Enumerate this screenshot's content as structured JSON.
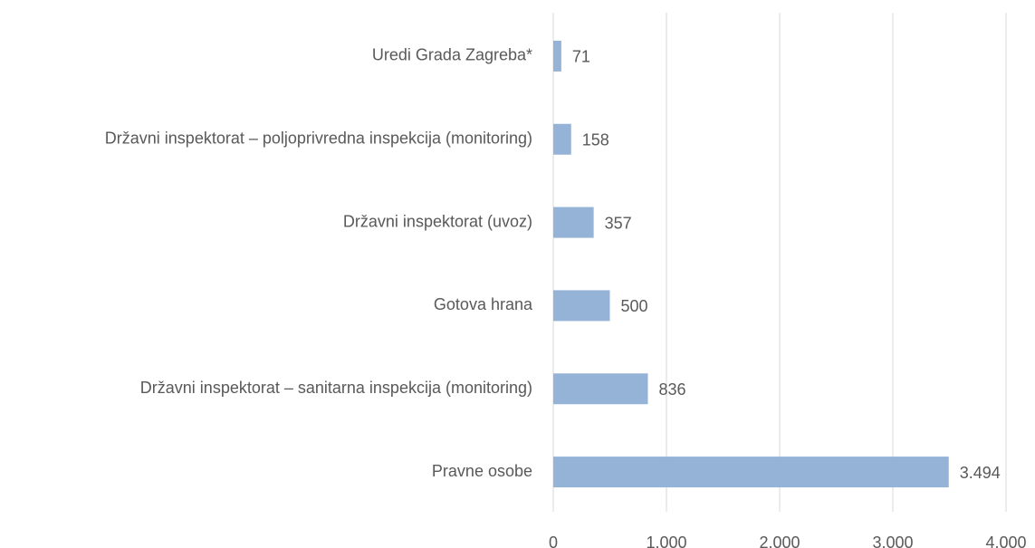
{
  "chart_data": {
    "type": "hbar",
    "categories": [
      "Uredi Grada Zagreba*",
      "Državni inspektorat – poljoprivredna inspekcija (monitoring)",
      "Državni inspektorat (uvoz)",
      "Gotova hrana",
      "Državni inspektorat – sanitarna inspekcija (monitoring)",
      "Pravne osobe"
    ],
    "values": [
      71,
      158,
      357,
      500,
      836,
      3494
    ],
    "value_labels": [
      "71",
      "158",
      "357",
      "500",
      "836",
      "3.494"
    ],
    "color": "#95b3d7",
    "xlim": [
      0,
      4000
    ],
    "xticks": [
      0,
      {
        "value": 1000,
        "label": "1.000"
      },
      {
        "value": 2000,
        "label": "2.000"
      },
      {
        "value": 3000,
        "label": "3.000"
      },
      {
        "value": 4000,
        "label": "4.000"
      }
    ],
    "grid": true
  }
}
